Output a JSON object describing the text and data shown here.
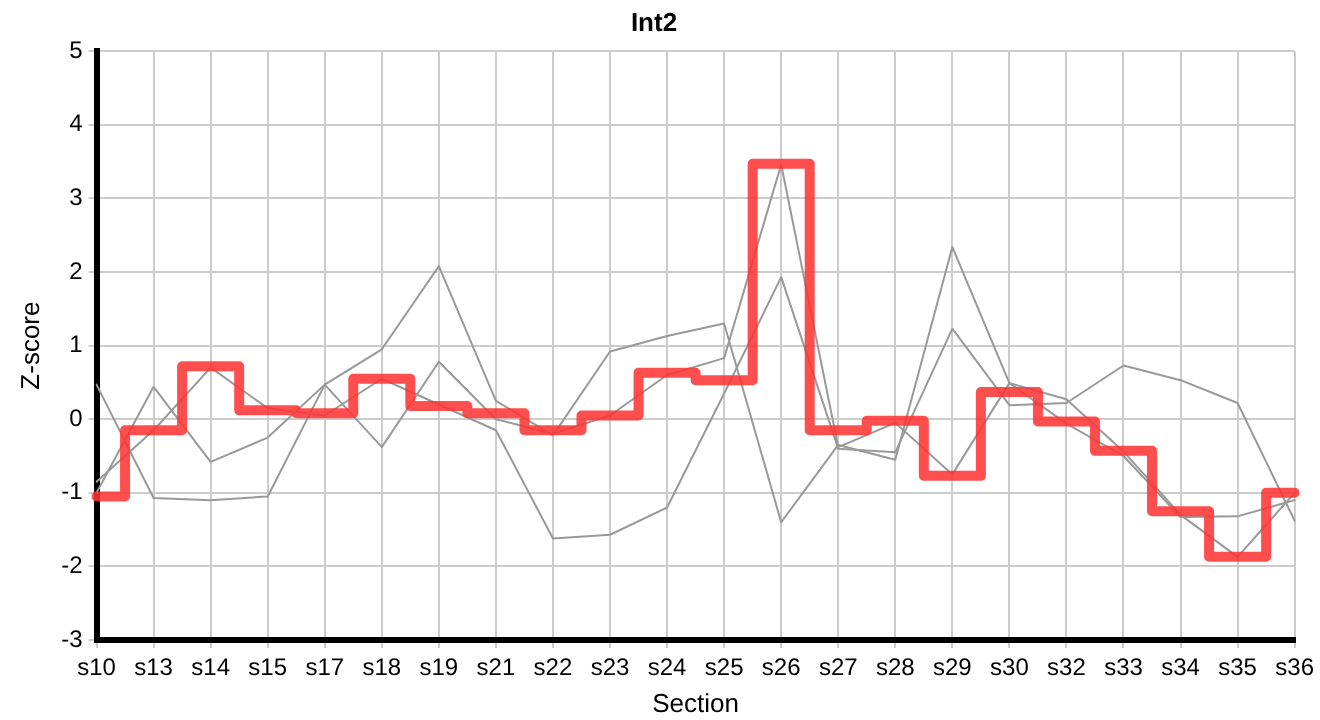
{
  "chart_data": {
    "type": "line",
    "title": "Int2",
    "xlabel": "Section",
    "ylabel": "Z-score",
    "categories": [
      "s10",
      "s13",
      "s14",
      "s15",
      "s17",
      "s18",
      "s19",
      "s21",
      "s22",
      "s23",
      "s24",
      "s25",
      "s26",
      "s27",
      "s28",
      "s29",
      "s30",
      "s32",
      "s33",
      "s34",
      "s35",
      "s36"
    ],
    "series": [
      {
        "type": "line",
        "color": "#999999",
        "values": [
          0.47,
          -1.07,
          -1.1,
          -1.05,
          0.47,
          0.95,
          2.08,
          0.25,
          -0.22,
          0.92,
          1.13,
          1.3,
          -1.4,
          -0.35,
          -0.55,
          2.34,
          0.49,
          0.27,
          -0.44,
          -1.3,
          -1.87,
          -1.0
        ]
      },
      {
        "type": "line",
        "color": "#999999",
        "values": [
          -0.85,
          -0.15,
          0.7,
          0.15,
          0.05,
          0.55,
          0.2,
          -0.15,
          -1.62,
          -1.57,
          -1.2,
          0.35,
          1.93,
          -0.4,
          -0.45,
          1.23,
          0.19,
          0.22,
          0.73,
          0.53,
          0.22,
          -1.38
        ]
      },
      {
        "type": "line",
        "color": "#999999",
        "values": [
          -1.0,
          0.44,
          -0.58,
          -0.25,
          0.47,
          -0.38,
          0.78,
          0.0,
          -0.2,
          0.05,
          0.6,
          0.83,
          3.46,
          -0.38,
          -0.05,
          -0.75,
          0.49,
          -0.06,
          -0.5,
          -1.33,
          -1.32,
          -1.1
        ]
      },
      {
        "type": "step",
        "color": "#ff3333",
        "values": [
          -1.05,
          -0.15,
          0.72,
          0.12,
          0.08,
          0.55,
          0.18,
          0.08,
          -0.15,
          0.05,
          0.63,
          0.53,
          3.47,
          -0.15,
          -0.02,
          -0.77,
          0.37,
          -0.03,
          -0.43,
          -1.25,
          -1.87,
          -1.0
        ]
      }
    ],
    "ylim": [
      -3,
      5
    ],
    "yticks": [
      -3,
      -2,
      -1,
      0,
      1,
      2,
      3,
      4,
      5
    ],
    "grid": true,
    "legend": false,
    "marker": "none"
  }
}
